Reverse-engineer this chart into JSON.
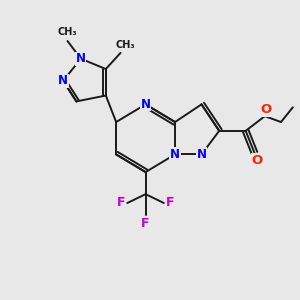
{
  "background_color": "#e8e8e8",
  "bond_color": "#1a1a1a",
  "nitrogen_color": "#0000ff",
  "oxygen_color": "#ff2200",
  "fluorine_color": "#cc00cc",
  "figsize": [
    3.0,
    3.0
  ],
  "dpi": 100,
  "xlim": [
    0,
    10
  ],
  "ylim": [
    0,
    10
  ]
}
